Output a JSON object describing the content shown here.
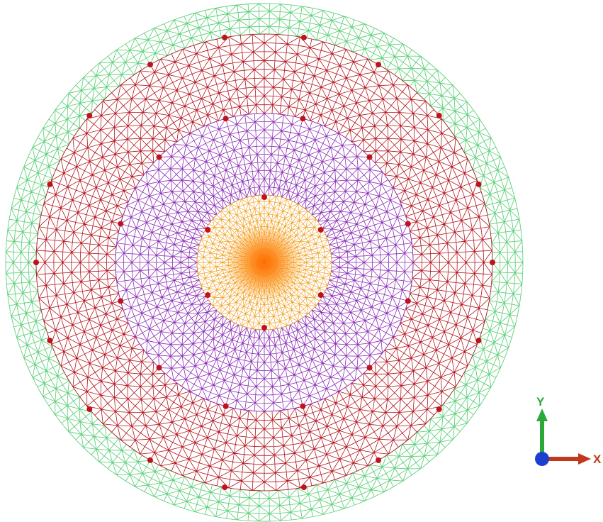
{
  "viewport": {
    "title": "",
    "background": "#ffffff"
  },
  "mesh": {
    "regions": [
      {
        "name": "outer-ring",
        "color": "#5fd07a"
      },
      {
        "name": "middle-ring",
        "color": "#b3121b"
      },
      {
        "name": "inner-ring",
        "color": "#8a2bb5"
      },
      {
        "name": "core",
        "color": "#f0a020"
      }
    ],
    "core_center_color": "#ff7a10",
    "node_marker_color": "#c0121b",
    "node_rings": [
      {
        "count": 6
      },
      {
        "count": 12
      },
      {
        "count": 18
      }
    ]
  },
  "triad": {
    "x_label": "X",
    "y_label": "Y",
    "x_color": "#c0391a",
    "y_color": "#2aa838",
    "origin_color": "#1c3fd0"
  }
}
